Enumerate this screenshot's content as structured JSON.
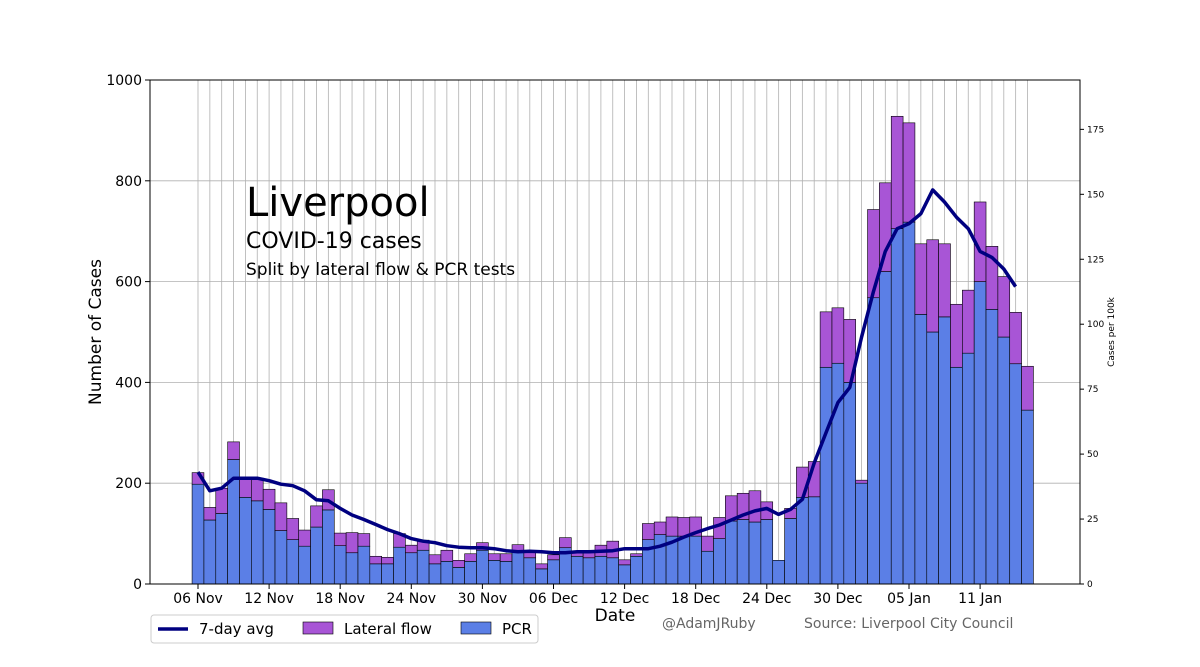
{
  "annotation": {
    "title": "Liverpool",
    "subtitle": "COVID-19 cases",
    "subsubtitle": "Split by lateral flow & PCR tests"
  },
  "credits": {
    "author": "@AdamJRuby",
    "source": "Source: Liverpool City Council"
  },
  "colors": {
    "pcr": "#5b7fe6",
    "lateral_flow": "#a855d6",
    "avg": "#000080",
    "grid": "#b0b0b0"
  },
  "chart_data": {
    "type": "bar",
    "stacked": true,
    "xlabel": "Date",
    "ylabel": "Number of Cases",
    "ylabel_right": "Cases per 100k",
    "ylim": [
      0,
      1000
    ],
    "yticks": [
      0,
      200,
      400,
      600,
      800,
      1000
    ],
    "ylim_right": [
      0,
      194
    ],
    "yticks_right": [
      0,
      25,
      50,
      75,
      100,
      125,
      150,
      175
    ],
    "xtick_labels": [
      "06 Nov",
      "12 Nov",
      "18 Nov",
      "24 Nov",
      "30 Nov",
      "06 Dec",
      "12 Dec",
      "18 Dec",
      "24 Dec",
      "30 Dec",
      "05 Jan",
      "11 Jan"
    ],
    "xtick_every": 6,
    "grid": "vertical-all-days, horizontal-major",
    "legend_position": "bottom-left",
    "series": [
      {
        "name": "PCR",
        "kind": "bar",
        "values": [
          198,
          127,
          140,
          247,
          172,
          165,
          148,
          106,
          88,
          75,
          113,
          147,
          76,
          62,
          75,
          40,
          40,
          73,
          62,
          67,
          40,
          45,
          33,
          45,
          67,
          47,
          45,
          65,
          52,
          30,
          48,
          72,
          55,
          52,
          55,
          52,
          38,
          55,
          88,
          98,
          95,
          95,
          95,
          65,
          90,
          125,
          128,
          123,
          128,
          47,
          130,
          172,
          173,
          430,
          438,
          400,
          200,
          568,
          620,
          705,
          718,
          535,
          500,
          530,
          430,
          458,
          600,
          545,
          490,
          437,
          345
        ]
      },
      {
        "name": "Lateral flow",
        "kind": "bar",
        "values": [
          23,
          25,
          50,
          35,
          40,
          45,
          40,
          55,
          42,
          32,
          42,
          40,
          25,
          40,
          25,
          15,
          13,
          27,
          15,
          20,
          18,
          22,
          14,
          15,
          15,
          13,
          15,
          13,
          13,
          10,
          10,
          20,
          7,
          13,
          22,
          33,
          10,
          5,
          32,
          25,
          38,
          37,
          38,
          30,
          42,
          50,
          52,
          62,
          35,
          0,
          20,
          60,
          70,
          110,
          110,
          125,
          6,
          175,
          176,
          223,
          197,
          140,
          183,
          145,
          125,
          125,
          158,
          125,
          120,
          102,
          87
        ]
      },
      {
        "name": "7-day avg",
        "kind": "line",
        "values": [
          222,
          185,
          190,
          210,
          210,
          210,
          205,
          198,
          195,
          185,
          167,
          165,
          150,
          137,
          128,
          118,
          108,
          100,
          90,
          85,
          82,
          76,
          73,
          72,
          72,
          70,
          66,
          64,
          65,
          64,
          62,
          62,
          64,
          64,
          65,
          66,
          70,
          70,
          70,
          75,
          83,
          93,
          102,
          110,
          117,
          127,
          137,
          145,
          150,
          138,
          148,
          168,
          240,
          300,
          360,
          390,
          490,
          580,
          660,
          705,
          715,
          735,
          782,
          758,
          728,
          705,
          660,
          648,
          625,
          590
        ]
      }
    ]
  }
}
